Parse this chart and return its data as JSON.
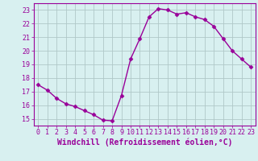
{
  "x": [
    0,
    1,
    2,
    3,
    4,
    5,
    6,
    7,
    8,
    9,
    10,
    11,
    12,
    13,
    14,
    15,
    16,
    17,
    18,
    19,
    20,
    21,
    22,
    23
  ],
  "y": [
    17.5,
    17.1,
    16.5,
    16.1,
    15.9,
    15.6,
    15.3,
    14.9,
    14.85,
    16.7,
    19.4,
    20.9,
    22.5,
    23.1,
    23.0,
    22.7,
    22.8,
    22.5,
    22.3,
    21.8,
    20.9,
    20.0,
    19.4,
    18.8
  ],
  "line_color": "#990099",
  "marker": "D",
  "marker_size": 2.5,
  "bg_color": "#d8f0f0",
  "grid_color": "#b0c8c8",
  "xlabel": "Windchill (Refroidissement éolien,°C)",
  "xlabel_color": "#990099",
  "xlabel_fontsize": 7,
  "tick_color": "#990099",
  "tick_fontsize": 6,
  "ylim": [
    14.5,
    23.5
  ],
  "xlim": [
    -0.5,
    23.5
  ],
  "yticks": [
    15,
    16,
    17,
    18,
    19,
    20,
    21,
    22,
    23
  ],
  "xticks": [
    0,
    1,
    2,
    3,
    4,
    5,
    6,
    7,
    8,
    9,
    10,
    11,
    12,
    13,
    14,
    15,
    16,
    17,
    18,
    19,
    20,
    21,
    22,
    23
  ]
}
